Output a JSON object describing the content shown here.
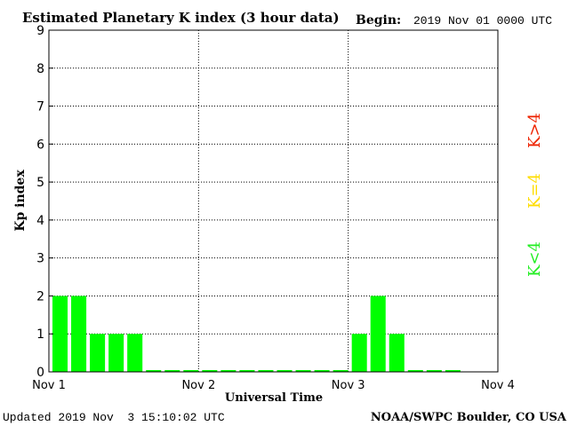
{
  "chart_data": {
    "type": "bar",
    "title": "Estimated Planetary K index (3 hour data)",
    "begin_label": "Begin:",
    "begin_value": "2019 Nov 01 0000 UTC",
    "xlabel": "Universal Time",
    "ylabel": "Kp index",
    "ylim": [
      0,
      9
    ],
    "yticks": [
      "0",
      "1",
      "2",
      "3",
      "4",
      "5",
      "6",
      "7",
      "8",
      "9"
    ],
    "xlim_days": [
      0,
      3
    ],
    "day_labels": [
      "Nov 1",
      "Nov 2",
      "Nov 3",
      "Nov 4"
    ],
    "bar_interval_hours": 3,
    "values": [
      2,
      2,
      1,
      1,
      1,
      0,
      0,
      0,
      0,
      0,
      0,
      0,
      0,
      0,
      0,
      0,
      1,
      2,
      1,
      0,
      0,
      0
    ],
    "bar_color": "#00ff00",
    "grid": "dotted",
    "legend": [
      {
        "label": "K<4",
        "color": "#22ee22"
      },
      {
        "label": "K=4",
        "color": "#ffdd00"
      },
      {
        "label": "K>4",
        "color": "#ee2200"
      }
    ],
    "legend_placement": "right"
  },
  "footer": {
    "updated": "Updated 2019 Nov  3 15:10:02 UTC",
    "credit": "NOAA/SWPC Boulder, CO USA"
  }
}
